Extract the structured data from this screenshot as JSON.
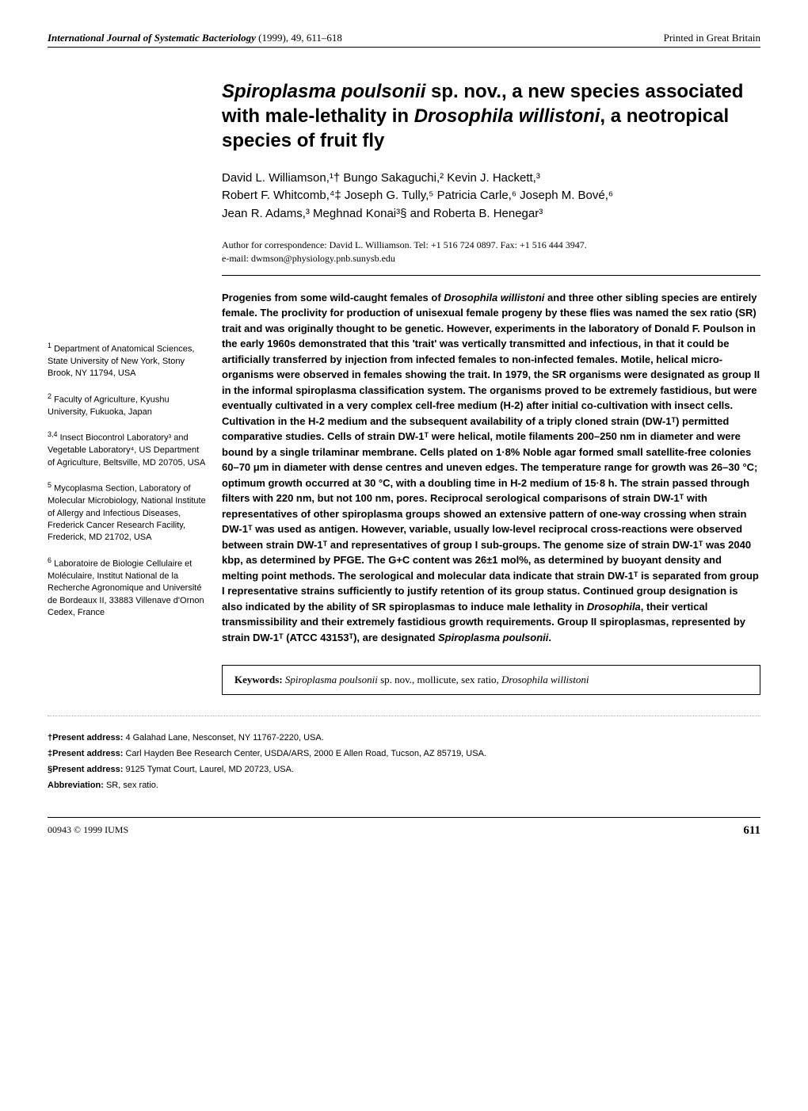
{
  "header": {
    "journal_italic": "International Journal of Systematic Bacteriology",
    "year_vol_pages": "(1999), 49, 611–618",
    "printed": "Printed in Great Britain"
  },
  "title": {
    "part1": "Spiroplasma poulsonii",
    "part2": " sp. nov., a new species associated with male-lethality in ",
    "part3": "Drosophila willistoni",
    "part4": ", a neotropical species of fruit fly"
  },
  "authors_line1": "David L. Williamson,¹† Bungo Sakaguchi,² Kevin J. Hackett,³",
  "authors_line2": "Robert F. Whitcomb,⁴‡ Joseph G. Tully,⁵ Patricia Carle,⁶ Joseph M. Bové,⁶",
  "authors_line3": "Jean R. Adams,³ Meghnad Konai³§ and Roberta B. Henegar³",
  "correspondence": {
    "line1": "Author for correspondence: David L. Williamson. Tel: +1 516 724 0897. Fax: +1 516 444 3947.",
    "line2": "e-mail: dwmson@physiology.pnb.sunysb.edu"
  },
  "affiliations": [
    {
      "sup": "1",
      "text": "Department of Anatomical Sciences, State University of New York, Stony Brook, NY 11794, USA"
    },
    {
      "sup": "2",
      "text": "Faculty of Agriculture, Kyushu University, Fukuoka, Japan"
    },
    {
      "sup": "3,4",
      "text": "Insect Biocontrol Laboratory³ and Vegetable Laboratory⁴, US Department of Agriculture, Beltsville, MD 20705, USA"
    },
    {
      "sup": "5",
      "text": "Mycoplasma Section, Laboratory of Molecular Microbiology, National Institute of Allergy and Infectious Diseases, Frederick Cancer Research Facility, Frederick, MD 21702, USA"
    },
    {
      "sup": "6",
      "text": "Laboratoire de Biologie Cellulaire et Moléculaire, Institut National de la Recherche Agronomique and Université de Bordeaux II, 33883 Villenave d'Ornon Cedex, France"
    }
  ],
  "abstract": {
    "pre_species1": "Progenies from some wild-caught females of ",
    "species1": "Drosophila willistoni",
    "post_species1": " and three other sibling species are entirely female. The proclivity for production of unisexual female progeny by these flies was named the sex ratio (SR) trait and was originally thought to be genetic. However, experiments in the laboratory of Donald F. Poulson in the early 1960s demonstrated that this 'trait' was vertically transmitted and infectious, in that it could be artificially transferred by injection from infected females to non-infected females. Motile, helical micro-organisms were observed in females showing the trait. In 1979, the SR organisms were designated as group II in the informal spiroplasma classification system. The organisms proved to be extremely fastidious, but were eventually cultivated in a very complex cell-free medium (H-2) after initial co-cultivation with insect cells. Cultivation in the H-2 medium and the subsequent availability of a triply cloned strain (DW-1ᵀ) permitted comparative studies. Cells of strain DW-1ᵀ were helical, motile filaments 200–250 nm in diameter and were bound by a single trilaminar membrane. Cells plated on 1·8% Noble agar formed small satellite-free colonies 60–70 μm in diameter with dense centres and uneven edges. The temperature range for growth was 26–30 °C; optimum growth occurred at 30 °C, with a doubling time in H-2 medium of 15·8 h. The strain passed through filters with 220 nm, but not 100 nm, pores. Reciprocal serological comparisons of strain DW-1ᵀ with representatives of other spiroplasma groups showed an extensive pattern of one-way crossing when strain DW-1ᵀ was used as antigen. However, variable, usually low-level reciprocal cross-reactions were observed between strain DW-1ᵀ and representatives of group I sub-groups. The genome size of strain DW-1ᵀ was 2040 kbp, as determined by PFGE. The G+C content was 26±1 mol%, as determined by buoyant density and melting point methods. The serological and molecular data indicate that strain DW-1ᵀ is separated from group I representative strains sufficiently to justify retention of its group status. Continued group designation is also indicated by the ability of SR spiroplasmas to induce male lethality in ",
    "species2": "Drosophila",
    "post_species2": ", their vertical transmissibility and their extremely fastidious growth requirements. Group II spiroplasmas, represented by strain DW-1ᵀ (ATCC 43153ᵀ), are designated ",
    "species3": "Spiroplasma poulsonii",
    "post_species3": "."
  },
  "keywords": {
    "label": "Keywords:",
    "species1": "Spiroplasma poulsonii",
    "mid": " sp. nov., mollicute, sex ratio, ",
    "species2": "Drosophila willistoni"
  },
  "footnotes": {
    "f1_label": "†Present address:",
    "f1_text": " 4 Galahad Lane, Nesconset, NY 11767-2220, USA.",
    "f2_label": "‡Present address:",
    "f2_text": " Carl Hayden Bee Research Center, USDA/ARS, 2000 E Allen Road, Tucson, AZ 85719, USA.",
    "f3_label": "§Present address:",
    "f3_text": " 9125 Tymat Court, Laurel, MD 20723, USA.",
    "f4_label": "Abbreviation:",
    "f4_text": " SR, sex ratio."
  },
  "footer": {
    "copyright": "00943 © 1999 IUMS",
    "page": "611"
  }
}
